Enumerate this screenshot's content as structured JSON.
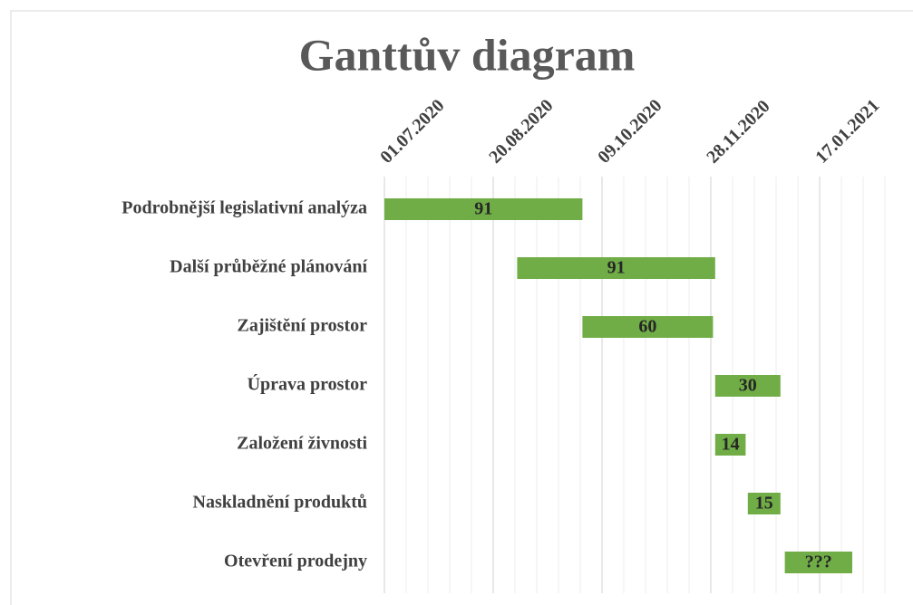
{
  "chart_data": {
    "type": "gantt",
    "title": "Ganttův diagram",
    "categories": [
      "Podrobnější legislativní analýza",
      "Další průběžné plánování",
      "Zajištění prostor ",
      "Úprava prostor ",
      "Založení živnosti",
      "Naskladnění produktů",
      "Otevření prodejny"
    ],
    "starts": [
      44013,
      44074,
      44104,
      44165,
      44165,
      44180,
      44197
    ],
    "values": [
      91,
      91,
      60,
      30,
      14,
      15,
      31
    ],
    "value_labels": [
      "91",
      "91",
      "60",
      "30",
      "14",
      "15",
      "???"
    ],
    "color": "#70ad47",
    "xlim": [
      44013,
      44243
    ],
    "xticks": [
      {
        "value": 44013,
        "label": "01.07.2020"
      },
      {
        "value": 44063,
        "label": "20.08.2020"
      },
      {
        "value": 44113,
        "label": "09.10.2020"
      },
      {
        "value": 44163,
        "label": "28.11.2020"
      },
      {
        "value": 44213,
        "label": "17.01.2021"
      }
    ],
    "x_minor_step": 10,
    "grid": true
  }
}
